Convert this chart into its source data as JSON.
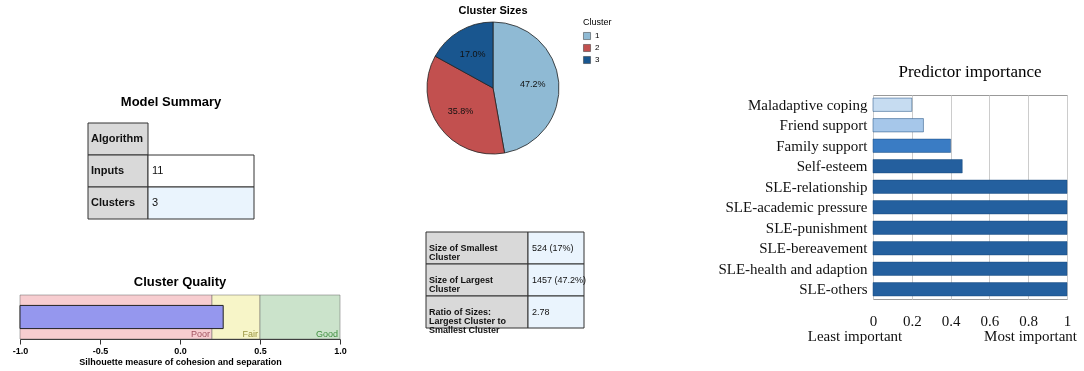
{
  "chart_data": [
    {
      "type": "other",
      "title": "Model Summary",
      "categories": [
        "Algorithm",
        "Inputs",
        "Clusters"
      ],
      "value_labels": [
        null,
        "11",
        "3"
      ]
    },
    {
      "type": "bar",
      "orientation": "horizontal",
      "title": "Cluster Quality",
      "xlabel": "Silhouette measure of cohesion and separation",
      "categories": [
        null
      ],
      "base": [
        -1
      ],
      "values": [
        1.27
      ],
      "color": "#9597ee",
      "xlim": [
        -1,
        1
      ],
      "xticks": [
        {
          "value": -1,
          "label": "-1.0"
        },
        {
          "value": -0.5,
          "label": "-0.5"
        },
        {
          "value": 0,
          "label": "0.0"
        },
        {
          "value": 0.5,
          "label": "0.5"
        },
        {
          "value": 1,
          "label": "1.0"
        }
      ],
      "bands": [
        {
          "axis": "x",
          "from": -1,
          "to": 0.2,
          "label": "Poor",
          "color": "#f7cdd0"
        },
        {
          "axis": "x",
          "from": 0.2,
          "to": 0.5,
          "label": "Fair",
          "color": "#f7f5c8"
        },
        {
          "axis": "x",
          "from": 0.5,
          "to": 1,
          "label": "Good",
          "color": "#cbe3cb"
        }
      ]
    },
    {
      "type": "pie",
      "title": "Cluster Sizes",
      "legend_title": "Cluster",
      "legend": "top right",
      "categories": [
        "1",
        "2",
        "3"
      ],
      "values": [
        47.2,
        35.8,
        17.0
      ],
      "colors": [
        "#8fbad4",
        "#c2504f",
        "#19568f"
      ],
      "value_labels": [
        "47.2%",
        "35.8%",
        "17.0%"
      ]
    },
    {
      "type": "other",
      "categories": [
        "Size of Smallest Cluster",
        "Size of Largest Cluster",
        "Ratio of Sizes: Largest Cluster to Smallest Cluster"
      ],
      "value_labels": [
        "524 (17%)",
        "1457 (47.2%)",
        "2.78"
      ]
    },
    {
      "type": "bar",
      "orientation": "horizontal",
      "title": "Predictor importance",
      "categories": [
        "Maladaptive coping",
        "Friend support",
        "Family support",
        "Self-esteem",
        "SLE-relationship",
        "SLE-academic pressure",
        "SLE-punishment",
        "SLE-bereavement",
        "SLE-health and adaption",
        "SLE-others"
      ],
      "values": [
        0.2,
        0.26,
        0.4,
        0.46,
        1,
        1,
        1,
        1,
        1,
        1
      ],
      "colors": [
        "#c6dcf1",
        "#a6c7ea",
        "#3a7cc4",
        "#245f9e",
        "#24609f",
        "#24609f",
        "#24609f",
        "#24609f",
        "#24609f",
        "#24609f"
      ],
      "xlim": [
        0,
        1
      ],
      "xticks": [
        0,
        0.2,
        0.4,
        0.6,
        0.8,
        1
      ],
      "grid": "x",
      "annotations": [
        "Least important",
        "Most important"
      ]
    }
  ]
}
